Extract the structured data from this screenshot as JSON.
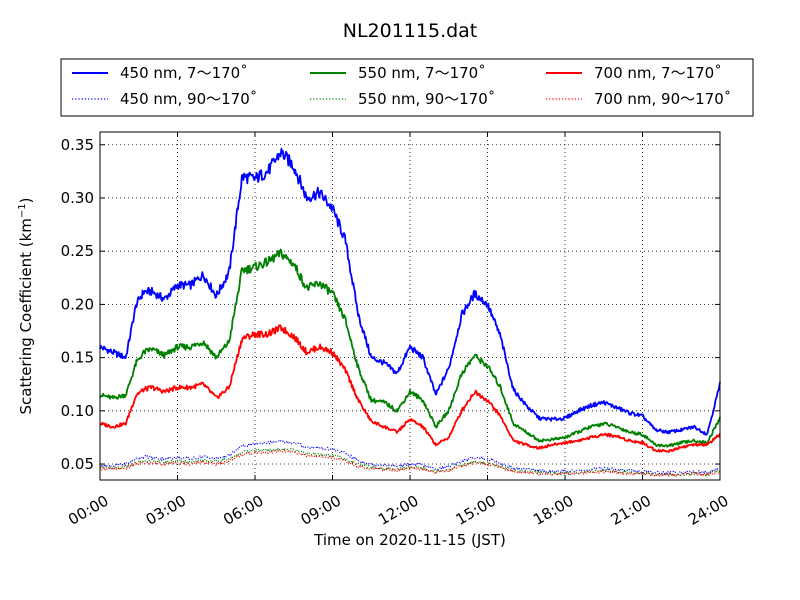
{
  "chart_data": {
    "type": "line",
    "title": "NL201115.dat",
    "xlabel": "Time on 2020-11-15 (JST)",
    "ylabel": "Scattering Coefficient (km",
    "ylabel_sup": "−1",
    "ylabel_end": ")",
    "xlim": [
      0,
      24
    ],
    "ylim": [
      0.035,
      0.362
    ],
    "x_ticks": [
      0,
      3,
      6,
      9,
      12,
      15,
      18,
      21,
      24
    ],
    "x_tick_labels": [
      "00:00",
      "03:00",
      "06:00",
      "09:00",
      "12:00",
      "15:00",
      "18:00",
      "21:00",
      "24:00"
    ],
    "y_ticks": [
      0.05,
      0.1,
      0.15,
      0.2,
      0.25,
      0.3,
      0.35
    ],
    "y_tick_labels": [
      "0.05",
      "0.10",
      "0.15",
      "0.20",
      "0.25",
      "0.30",
      "0.35"
    ],
    "grid": true,
    "legend_position": "top (above plot)",
    "x_hours": [
      0,
      0.5,
      1,
      1.4,
      1.7,
      2,
      2.5,
      3,
      3.5,
      4,
      4.5,
      5,
      5.5,
      6,
      6.5,
      7,
      7.5,
      8,
      8.5,
      9,
      9.5,
      10,
      10.5,
      11,
      11.5,
      12,
      12.5,
      13,
      13.5,
      14,
      14.5,
      15,
      15.5,
      16,
      16.5,
      17,
      17.5,
      18,
      18.5,
      19,
      19.5,
      20,
      20.5,
      21,
      21.5,
      22,
      22.5,
      23,
      23.5,
      24
    ],
    "series": [
      {
        "name": "450 nm, 7～170˚",
        "color": "#0000ff",
        "style": "solid",
        "values": [
          0.16,
          0.155,
          0.15,
          0.2,
          0.212,
          0.212,
          0.205,
          0.218,
          0.218,
          0.228,
          0.208,
          0.23,
          0.32,
          0.318,
          0.325,
          0.343,
          0.33,
          0.3,
          0.305,
          0.29,
          0.26,
          0.19,
          0.15,
          0.145,
          0.135,
          0.16,
          0.15,
          0.115,
          0.14,
          0.19,
          0.21,
          0.2,
          0.17,
          0.12,
          0.105,
          0.093,
          0.092,
          0.093,
          0.1,
          0.105,
          0.108,
          0.103,
          0.098,
          0.095,
          0.082,
          0.08,
          0.082,
          0.085,
          0.078,
          0.125
        ]
      },
      {
        "name": "550 nm, 7～170˚",
        "color": "#008000",
        "style": "solid",
        "values": [
          0.115,
          0.112,
          0.115,
          0.145,
          0.155,
          0.158,
          0.152,
          0.16,
          0.16,
          0.165,
          0.15,
          0.165,
          0.232,
          0.235,
          0.24,
          0.248,
          0.238,
          0.215,
          0.22,
          0.21,
          0.185,
          0.14,
          0.11,
          0.108,
          0.1,
          0.118,
          0.11,
          0.085,
          0.1,
          0.135,
          0.152,
          0.142,
          0.122,
          0.088,
          0.08,
          0.072,
          0.073,
          0.075,
          0.08,
          0.085,
          0.088,
          0.085,
          0.08,
          0.078,
          0.068,
          0.067,
          0.07,
          0.072,
          0.07,
          0.093
        ]
      },
      {
        "name": "700 nm, 7～170˚",
        "color": "#ff0000",
        "style": "solid",
        "values": [
          0.088,
          0.085,
          0.088,
          0.115,
          0.12,
          0.122,
          0.118,
          0.122,
          0.122,
          0.125,
          0.112,
          0.122,
          0.168,
          0.172,
          0.172,
          0.178,
          0.17,
          0.155,
          0.16,
          0.155,
          0.138,
          0.11,
          0.09,
          0.085,
          0.08,
          0.092,
          0.085,
          0.068,
          0.075,
          0.1,
          0.118,
          0.11,
          0.095,
          0.072,
          0.068,
          0.065,
          0.068,
          0.07,
          0.072,
          0.075,
          0.078,
          0.076,
          0.072,
          0.07,
          0.063,
          0.062,
          0.066,
          0.068,
          0.068,
          0.078
        ]
      },
      {
        "name": "450 nm, 90～170˚",
        "color": "#0000ff",
        "style": "dotted",
        "values": [
          0.049,
          0.048,
          0.05,
          0.055,
          0.057,
          0.056,
          0.055,
          0.056,
          0.055,
          0.057,
          0.055,
          0.058,
          0.067,
          0.069,
          0.07,
          0.071,
          0.07,
          0.066,
          0.065,
          0.064,
          0.06,
          0.053,
          0.05,
          0.049,
          0.048,
          0.05,
          0.049,
          0.045,
          0.048,
          0.053,
          0.056,
          0.055,
          0.051,
          0.046,
          0.045,
          0.044,
          0.043,
          0.043,
          0.044,
          0.045,
          0.046,
          0.045,
          0.044,
          0.043,
          0.042,
          0.042,
          0.042,
          0.043,
          0.042,
          0.046
        ]
      },
      {
        "name": "550 nm, 90～170˚",
        "color": "#008000",
        "style": "dotted",
        "values": [
          0.047,
          0.046,
          0.047,
          0.051,
          0.053,
          0.053,
          0.052,
          0.053,
          0.052,
          0.054,
          0.052,
          0.055,
          0.061,
          0.063,
          0.063,
          0.064,
          0.063,
          0.06,
          0.059,
          0.058,
          0.055,
          0.05,
          0.047,
          0.046,
          0.045,
          0.047,
          0.046,
          0.043,
          0.045,
          0.049,
          0.052,
          0.051,
          0.048,
          0.044,
          0.043,
          0.042,
          0.041,
          0.041,
          0.042,
          0.043,
          0.044,
          0.043,
          0.042,
          0.041,
          0.04,
          0.04,
          0.04,
          0.041,
          0.04,
          0.044
        ]
      },
      {
        "name": "700 nm, 90～170˚",
        "color": "#ff0000",
        "style": "dotted",
        "values": [
          0.046,
          0.045,
          0.046,
          0.05,
          0.051,
          0.051,
          0.05,
          0.051,
          0.05,
          0.052,
          0.05,
          0.053,
          0.059,
          0.061,
          0.061,
          0.062,
          0.061,
          0.058,
          0.057,
          0.056,
          0.053,
          0.048,
          0.046,
          0.045,
          0.044,
          0.046,
          0.045,
          0.042,
          0.044,
          0.048,
          0.051,
          0.05,
          0.047,
          0.043,
          0.042,
          0.041,
          0.041,
          0.041,
          0.041,
          0.042,
          0.043,
          0.042,
          0.041,
          0.041,
          0.04,
          0.04,
          0.04,
          0.041,
          0.04,
          0.043
        ]
      }
    ]
  }
}
